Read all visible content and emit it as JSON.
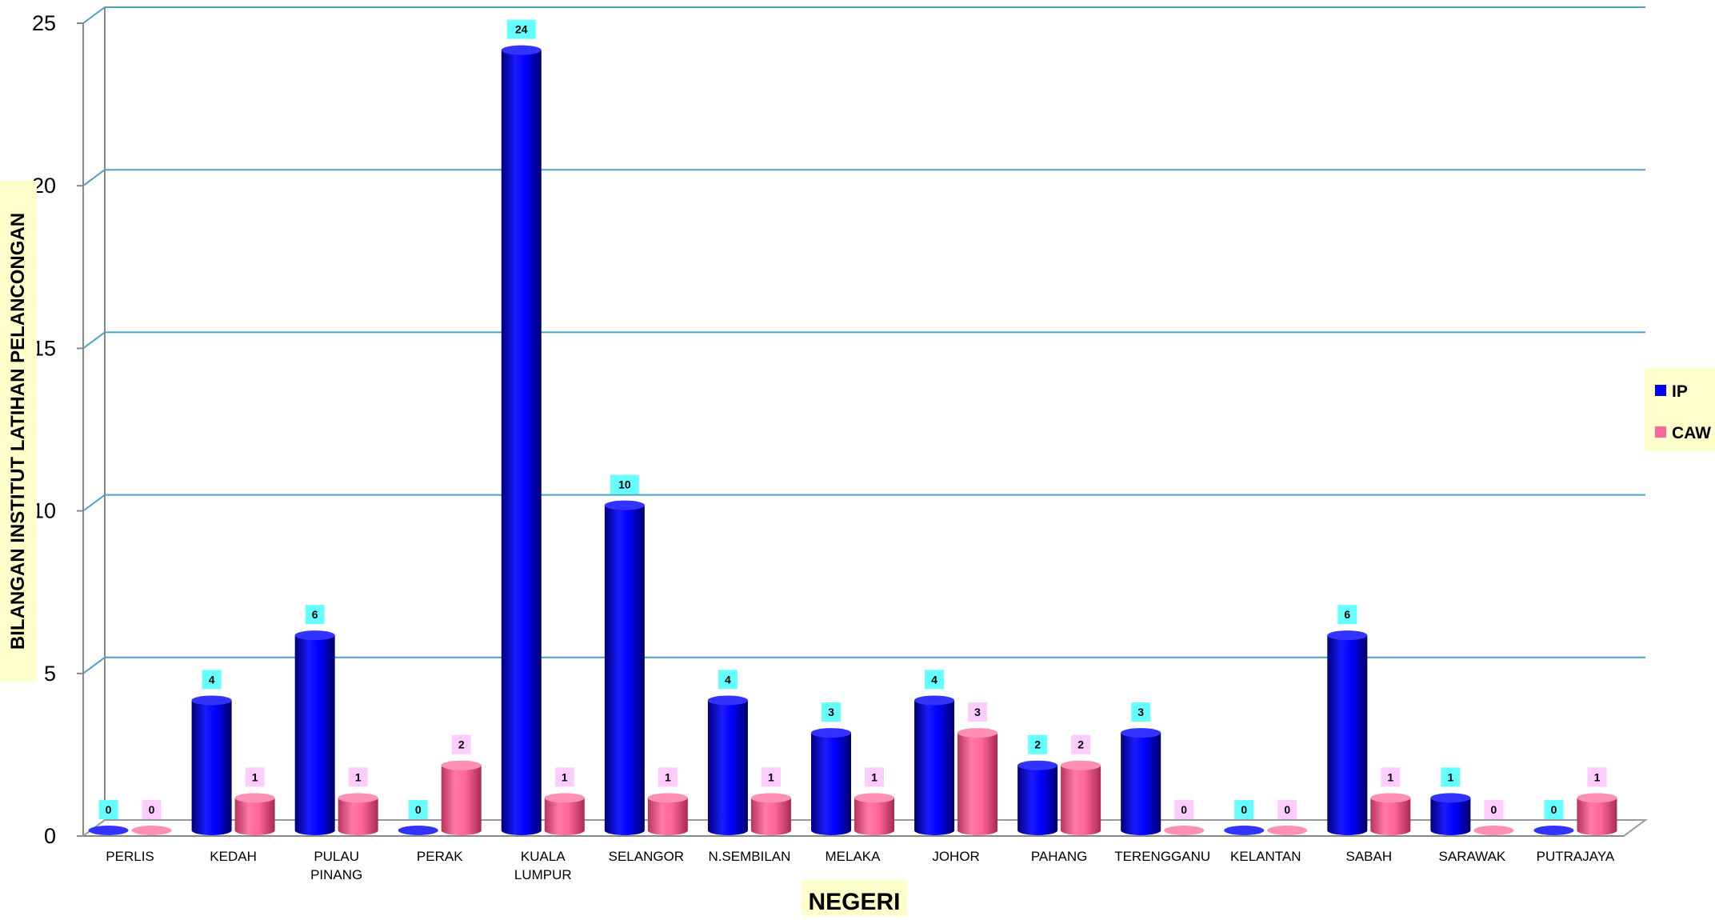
{
  "chart_data": {
    "type": "bar",
    "title": "",
    "xlabel": "NEGERI",
    "ylabel": "BILANGAN INSTITUT LATIHAN PELANCONGAN",
    "ylim": [
      0,
      25
    ],
    "yticks": [
      "0",
      "5",
      "10",
      "15",
      "20",
      "25"
    ],
    "ytick_values": [
      0,
      5,
      10,
      15,
      20,
      25
    ],
    "grid": true,
    "legend_position": "right",
    "categories": [
      [
        "PERLIS"
      ],
      [
        "KEDAH"
      ],
      [
        "PULAU",
        "PINANG"
      ],
      [
        "PERAK"
      ],
      [
        "KUALA",
        "LUMPUR"
      ],
      [
        "SELANGOR"
      ],
      [
        "N.SEMBILAN"
      ],
      [
        "MELAKA"
      ],
      [
        "JOHOR"
      ],
      [
        "PAHANG"
      ],
      [
        "TERENGGANU"
      ],
      [
        "KELANTAN"
      ],
      [
        "SABAH"
      ],
      [
        "SARAWAK"
      ],
      [
        "PUTRAJAYA"
      ]
    ],
    "series": [
      {
        "name": "IP",
        "color": "#0000ff",
        "label_bg": "#66ffff",
        "values": [
          0,
          4,
          6,
          0,
          24,
          10,
          4,
          3,
          4,
          2,
          3,
          0,
          6,
          1,
          0
        ],
        "labels": [
          "0",
          "4",
          "6",
          "0",
          "24",
          "10",
          "4",
          "3",
          "4",
          "2",
          "3",
          "0",
          "6",
          "1",
          "0"
        ]
      },
      {
        "name": "CAW",
        "color": "#ff6699",
        "label_bg": "#ffccff",
        "values": [
          0,
          1,
          1,
          2,
          1,
          1,
          1,
          1,
          3,
          2,
          0,
          0,
          1,
          0,
          1
        ],
        "labels": [
          "0",
          "1",
          "1",
          "2",
          "1",
          "1",
          "1",
          "1",
          "3",
          "2",
          "0",
          "0",
          "1",
          "0",
          "1"
        ]
      }
    ]
  },
  "colors": {
    "gridline": "#4ba3c3",
    "axis_label_bg": "#ffffcc",
    "legend_bg": "#ffffcc"
  }
}
